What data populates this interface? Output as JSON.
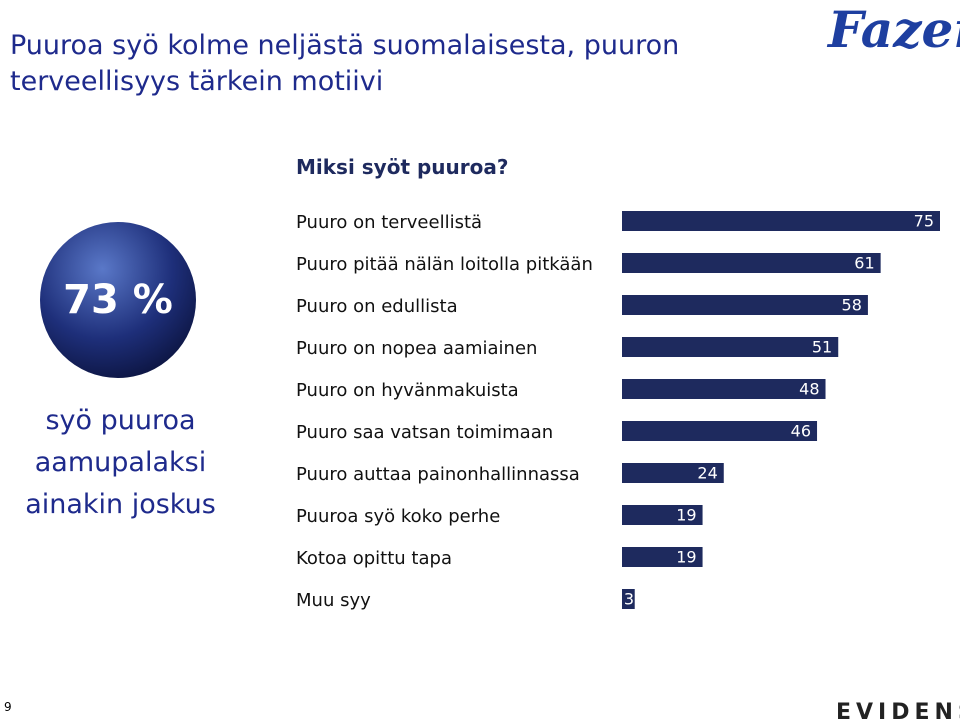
{
  "header": {
    "title": "Puuroa syö kolme neljästä suomalaisesta, puuron terveellisyys tärkein motiivi",
    "logo": "Fazer"
  },
  "highlight": {
    "value": "73 %",
    "caption": "syö puuroa aamupalaksi ainakin joskus"
  },
  "chart_data": {
    "type": "bar",
    "orientation": "horizontal",
    "title": "Miksi syöt puuroa?",
    "categories": [
      "Puuro on terveellistä",
      "Puuro pitää nälän loitolla pitkään",
      "Puuro on edullista",
      "Puuro on nopea aamiainen",
      "Puuro on hyvänmakuista",
      "Puuro saa vatsan toimimaan",
      "Puuro auttaa painonhallinnassa",
      "Puuroa syö koko perhe",
      "Kotoa opittu tapa",
      "Muu syy"
    ],
    "values": [
      75,
      61,
      58,
      51,
      48,
      46,
      24,
      19,
      19,
      3
    ],
    "color": "#1e2a5e"
  },
  "footer": {
    "page": "9",
    "brand": "EVIDENS"
  }
}
